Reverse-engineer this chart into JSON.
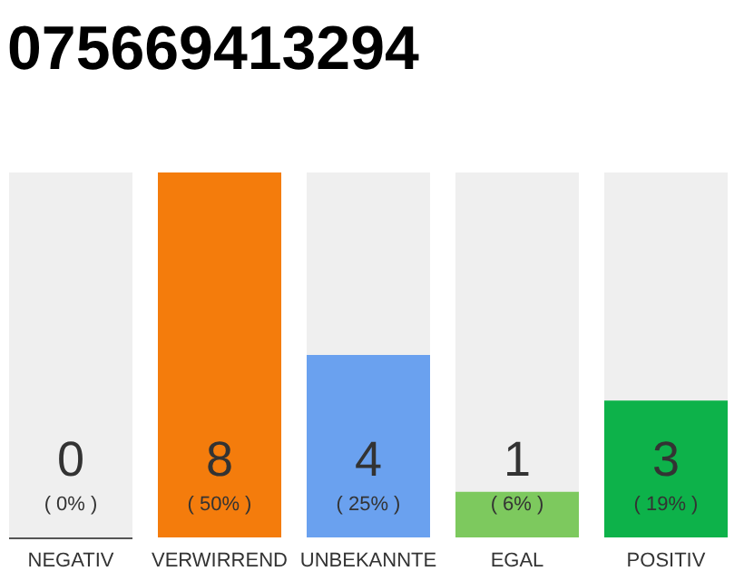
{
  "chart_data": {
    "type": "bar",
    "title": "075669413294",
    "categories": [
      "NEGATIV",
      "VERWIRREND",
      "UNBEKANNTE",
      "EGAL",
      "POSITIV"
    ],
    "values": [
      0,
      8,
      4,
      1,
      3
    ],
    "colors": [
      "#555555",
      "#f47c0c",
      "#6aa1ef",
      "#7dc95e",
      "#0db24a"
    ],
    "tick_labels": "x",
    "data_labels": true,
    "annotations": [
      "( 0% )",
      "( 50% )",
      "( 25% )",
      "( 6% )",
      "( 19% )"
    ]
  }
}
